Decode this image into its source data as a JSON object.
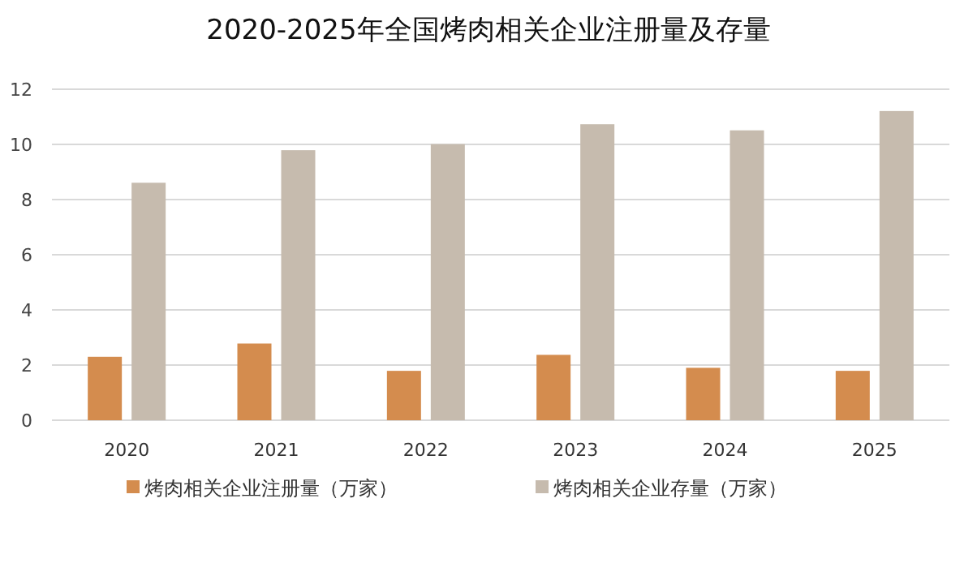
{
  "chart_data": {
    "type": "bar",
    "title": "2020-2025年全国烤肉相关企业注册量及存量",
    "categories": [
      "2020",
      "2021",
      "2022",
      "2023",
      "2024",
      "2025"
    ],
    "series": [
      {
        "name": "烤肉相关企业注册量（万家）",
        "color": "#d48c4e",
        "values": [
          2.3,
          2.78,
          1.79,
          2.37,
          1.9,
          1.79
        ]
      },
      {
        "name": "烤肉相关企业存量（万家）",
        "color": "#c6bbae",
        "values": [
          8.61,
          9.79,
          10.01,
          10.73,
          10.51,
          11.21
        ]
      }
    ],
    "ylim": [
      0,
      12
    ],
    "yticks": [
      0,
      2,
      4,
      6,
      8,
      10,
      12
    ],
    "grid": "y",
    "legend": "bottom"
  }
}
